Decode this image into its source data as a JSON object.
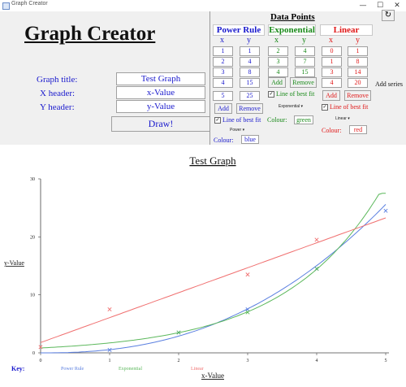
{
  "window": {
    "title": "Graph Creator",
    "controls": [
      "—",
      "☐",
      "✕"
    ]
  },
  "app_title": "Graph Creator",
  "form": {
    "graph_title_label": "Graph title:",
    "graph_title_value": "Test Graph",
    "x_header_label": "X header:",
    "x_header_value": "x-Value",
    "y_header_label": "Y header:",
    "y_header_value": "y-Value",
    "draw_label": "Draw!"
  },
  "data_points": {
    "heading": "Data Points",
    "refresh_icon": "↻",
    "add_series_label": "Add series",
    "series": [
      {
        "name": "Power Rule",
        "color": "#1a1acd",
        "x_header": "x",
        "y_header": "y",
        "x": [
          "1",
          "2",
          "3",
          "4",
          "5"
        ],
        "y": [
          "1",
          "4",
          "8",
          "15",
          "25"
        ],
        "add_label": "Add",
        "remove_label": "Remove",
        "line_label": "Line of best fit",
        "line_checked": "✓",
        "fit": "Power",
        "colour_label": "Colour:",
        "colour_value": "blue"
      },
      {
        "name": "Exponential",
        "color": "#1a8a1a",
        "x_header": "x",
        "y_header": "y",
        "x": [
          "2",
          "3",
          "4"
        ],
        "y": [
          "4",
          "7",
          "15"
        ],
        "add_label": "Add",
        "remove_label": "Remove",
        "line_label": "Line of best fit",
        "line_checked": "✓",
        "fit": "Exponential",
        "colour_label": "Colour:",
        "colour_value": "green"
      },
      {
        "name": "Linear",
        "color": "#e01818",
        "x_header": "x",
        "y_header": "y",
        "x": [
          "0",
          "1",
          "3",
          "4"
        ],
        "y": [
          "1",
          "8",
          "14",
          "20"
        ],
        "add_label": "Add",
        "remove_label": "Remove",
        "line_label": "Line of best fit",
        "line_checked": "✓",
        "fit": "Linear",
        "colour_label": "Colour:",
        "colour_value": "red"
      }
    ]
  },
  "chart_data": {
    "type": "scatter",
    "title": "Test Graph",
    "xlabel": "x-Value",
    "ylabel": "y-Value",
    "xlim": [
      0,
      5
    ],
    "ylim": [
      0,
      30
    ],
    "x_ticks": [
      0,
      1,
      2,
      3,
      4,
      5
    ],
    "y_ticks": [
      0,
      10,
      20,
      30
    ],
    "key_label": "Key:",
    "series": [
      {
        "name": "Power Rule",
        "color": "#5a7fe0",
        "fit": "power",
        "points": [
          [
            1,
            0.5
          ],
          [
            2,
            3.5
          ],
          [
            3,
            7.5
          ],
          [
            4,
            14.5
          ],
          [
            5,
            24.5
          ]
        ]
      },
      {
        "name": "Exponential",
        "color": "#5cb85c",
        "fit": "exponential",
        "points": [
          [
            2,
            3.5
          ],
          [
            3,
            7
          ],
          [
            4,
            14.5
          ]
        ]
      },
      {
        "name": "Linear",
        "color": "#f07070",
        "fit": "linear",
        "points": [
          [
            0,
            1
          ],
          [
            1,
            7.5
          ],
          [
            3,
            13.5
          ],
          [
            4,
            19.5
          ]
        ]
      }
    ]
  }
}
